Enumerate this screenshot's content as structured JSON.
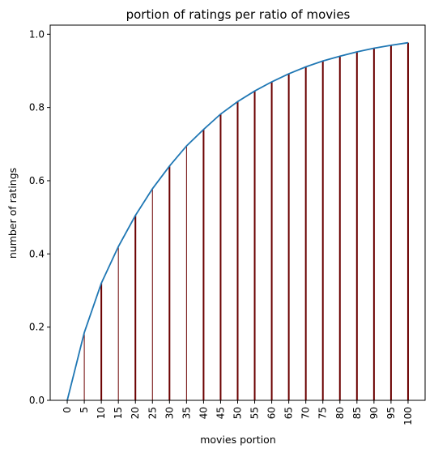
{
  "chart_data": {
    "type": "line",
    "title": "portion of ratings per ratio of movies",
    "xlabel": "movies portion",
    "ylabel": "number of ratings",
    "x": [
      0,
      5,
      10,
      15,
      20,
      25,
      30,
      35,
      40,
      45,
      50,
      55,
      60,
      65,
      70,
      75,
      80,
      85,
      90,
      95,
      100
    ],
    "x_ticks": [
      "0",
      "5",
      "10",
      "15",
      "20",
      "25",
      "30",
      "35",
      "40",
      "45",
      "50",
      "55",
      "60",
      "65",
      "70",
      "75",
      "80",
      "85",
      "90",
      "95",
      "100"
    ],
    "y_ticks": [
      "0.0",
      "0.2",
      "0.4",
      "0.6",
      "0.8",
      "1.0"
    ],
    "xlim": [
      -5,
      105
    ],
    "ylim": [
      0,
      1.025
    ],
    "grid": false,
    "series": [
      {
        "values": [
          0.0,
          0.185,
          0.32,
          0.42,
          0.505,
          0.578,
          0.64,
          0.695,
          0.74,
          0.782,
          0.816,
          0.845,
          0.87,
          0.892,
          0.911,
          0.927,
          0.94,
          0.952,
          0.962,
          0.97,
          0.977
        ],
        "color": "#1f77b4"
      }
    ],
    "stems": {
      "color": "#6b0000",
      "values": [
        0.0,
        0.185,
        0.32,
        0.42,
        0.505,
        0.578,
        0.64,
        0.695,
        0.74,
        0.782,
        0.816,
        0.845,
        0.87,
        0.892,
        0.911,
        0.927,
        0.94,
        0.952,
        0.962,
        0.97,
        0.977
      ]
    }
  }
}
